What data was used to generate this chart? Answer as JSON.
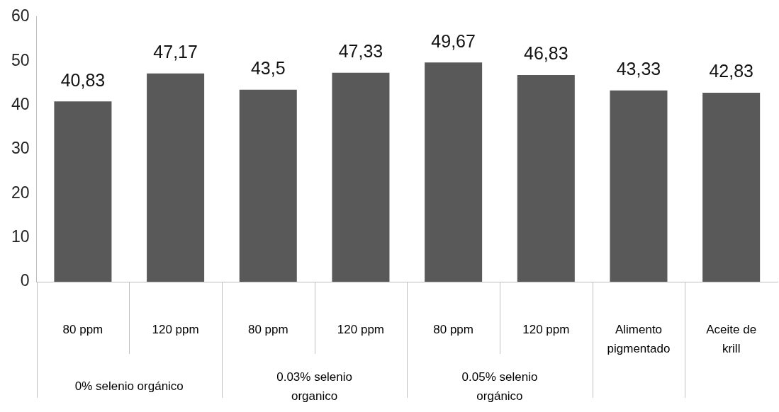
{
  "chart_data": {
    "type": "bar",
    "categories": [
      "80 ppm",
      "120 ppm",
      "80 ppm",
      "120 ppm",
      "80 ppm",
      "120 ppm",
      "Alimento pigmentado",
      "Aceite de krill"
    ],
    "values": [
      40.83,
      47.17,
      43.5,
      47.33,
      49.67,
      46.83,
      43.33,
      42.83
    ],
    "value_labels": [
      "40,83",
      "47,17",
      "43,5",
      "47,33",
      "49,67",
      "46,83",
      "43,33",
      "42,83"
    ],
    "color": "#595959",
    "ylim": [
      0,
      60
    ],
    "yticks": [
      0,
      10,
      20,
      30,
      40,
      50,
      60
    ],
    "grid": false,
    "legend": false,
    "annotations": [
      "0% selenio orgánico",
      "0.03% selenio organico",
      "0.05% selenio orgánico"
    ]
  }
}
